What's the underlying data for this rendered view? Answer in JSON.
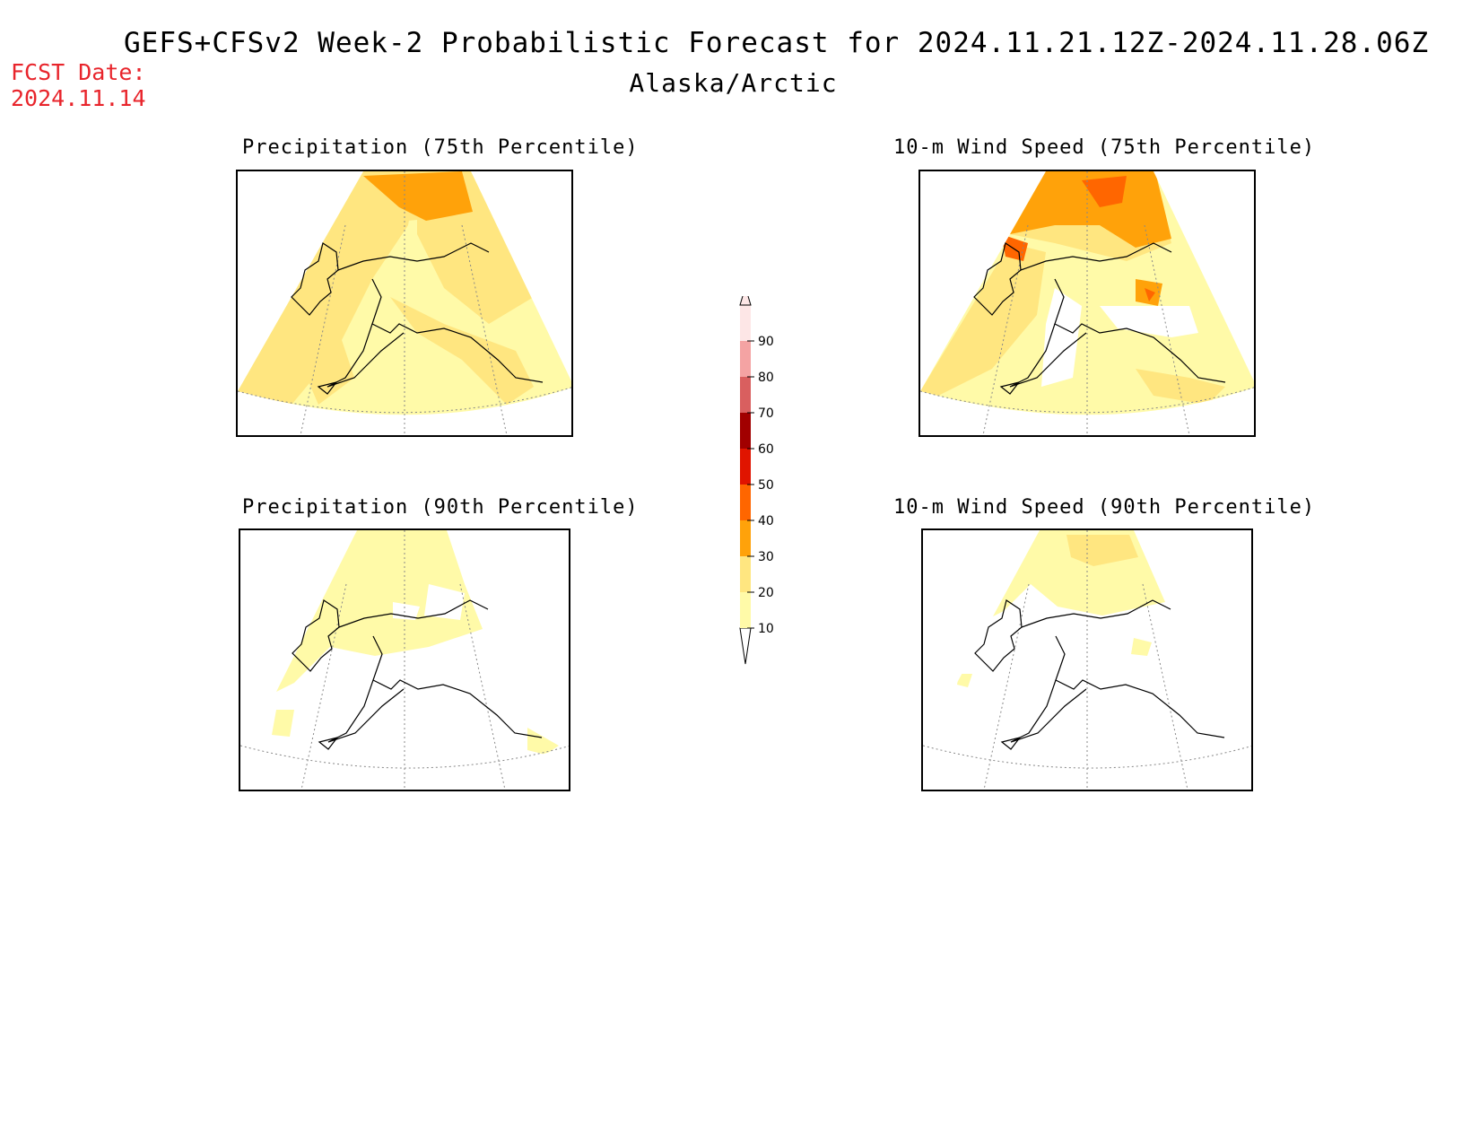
{
  "header": {
    "title": "GEFS+CFSv2 Week-2 Probabilistic Forecast for 2024.11.21.12Z-2024.11.28.06Z",
    "subtitle": "Alaska/Arctic",
    "fcst_label": "FCST Date:",
    "fcst_date": "2024.11.14"
  },
  "panels": [
    {
      "id": "precip75",
      "title": "Precipitation (75th Percentile)"
    },
    {
      "id": "wind75",
      "title": "10-m Wind Speed (75th Percentile)"
    },
    {
      "id": "precip90",
      "title": "Precipitation (90th Percentile)"
    },
    {
      "id": "wind90",
      "title": "10-m Wind Speed (90th Percentile)"
    }
  ],
  "legend": {
    "levels": [
      "10",
      "20",
      "30",
      "40",
      "50",
      "60",
      "70",
      "80",
      "90"
    ],
    "colors": [
      "#fffaa8",
      "#ffe680",
      "#ffa20a",
      "#ff6600",
      "#e01400",
      "#a10000",
      "#d95f5f",
      "#f4a3a3",
      "#fde6e6"
    ]
  }
}
